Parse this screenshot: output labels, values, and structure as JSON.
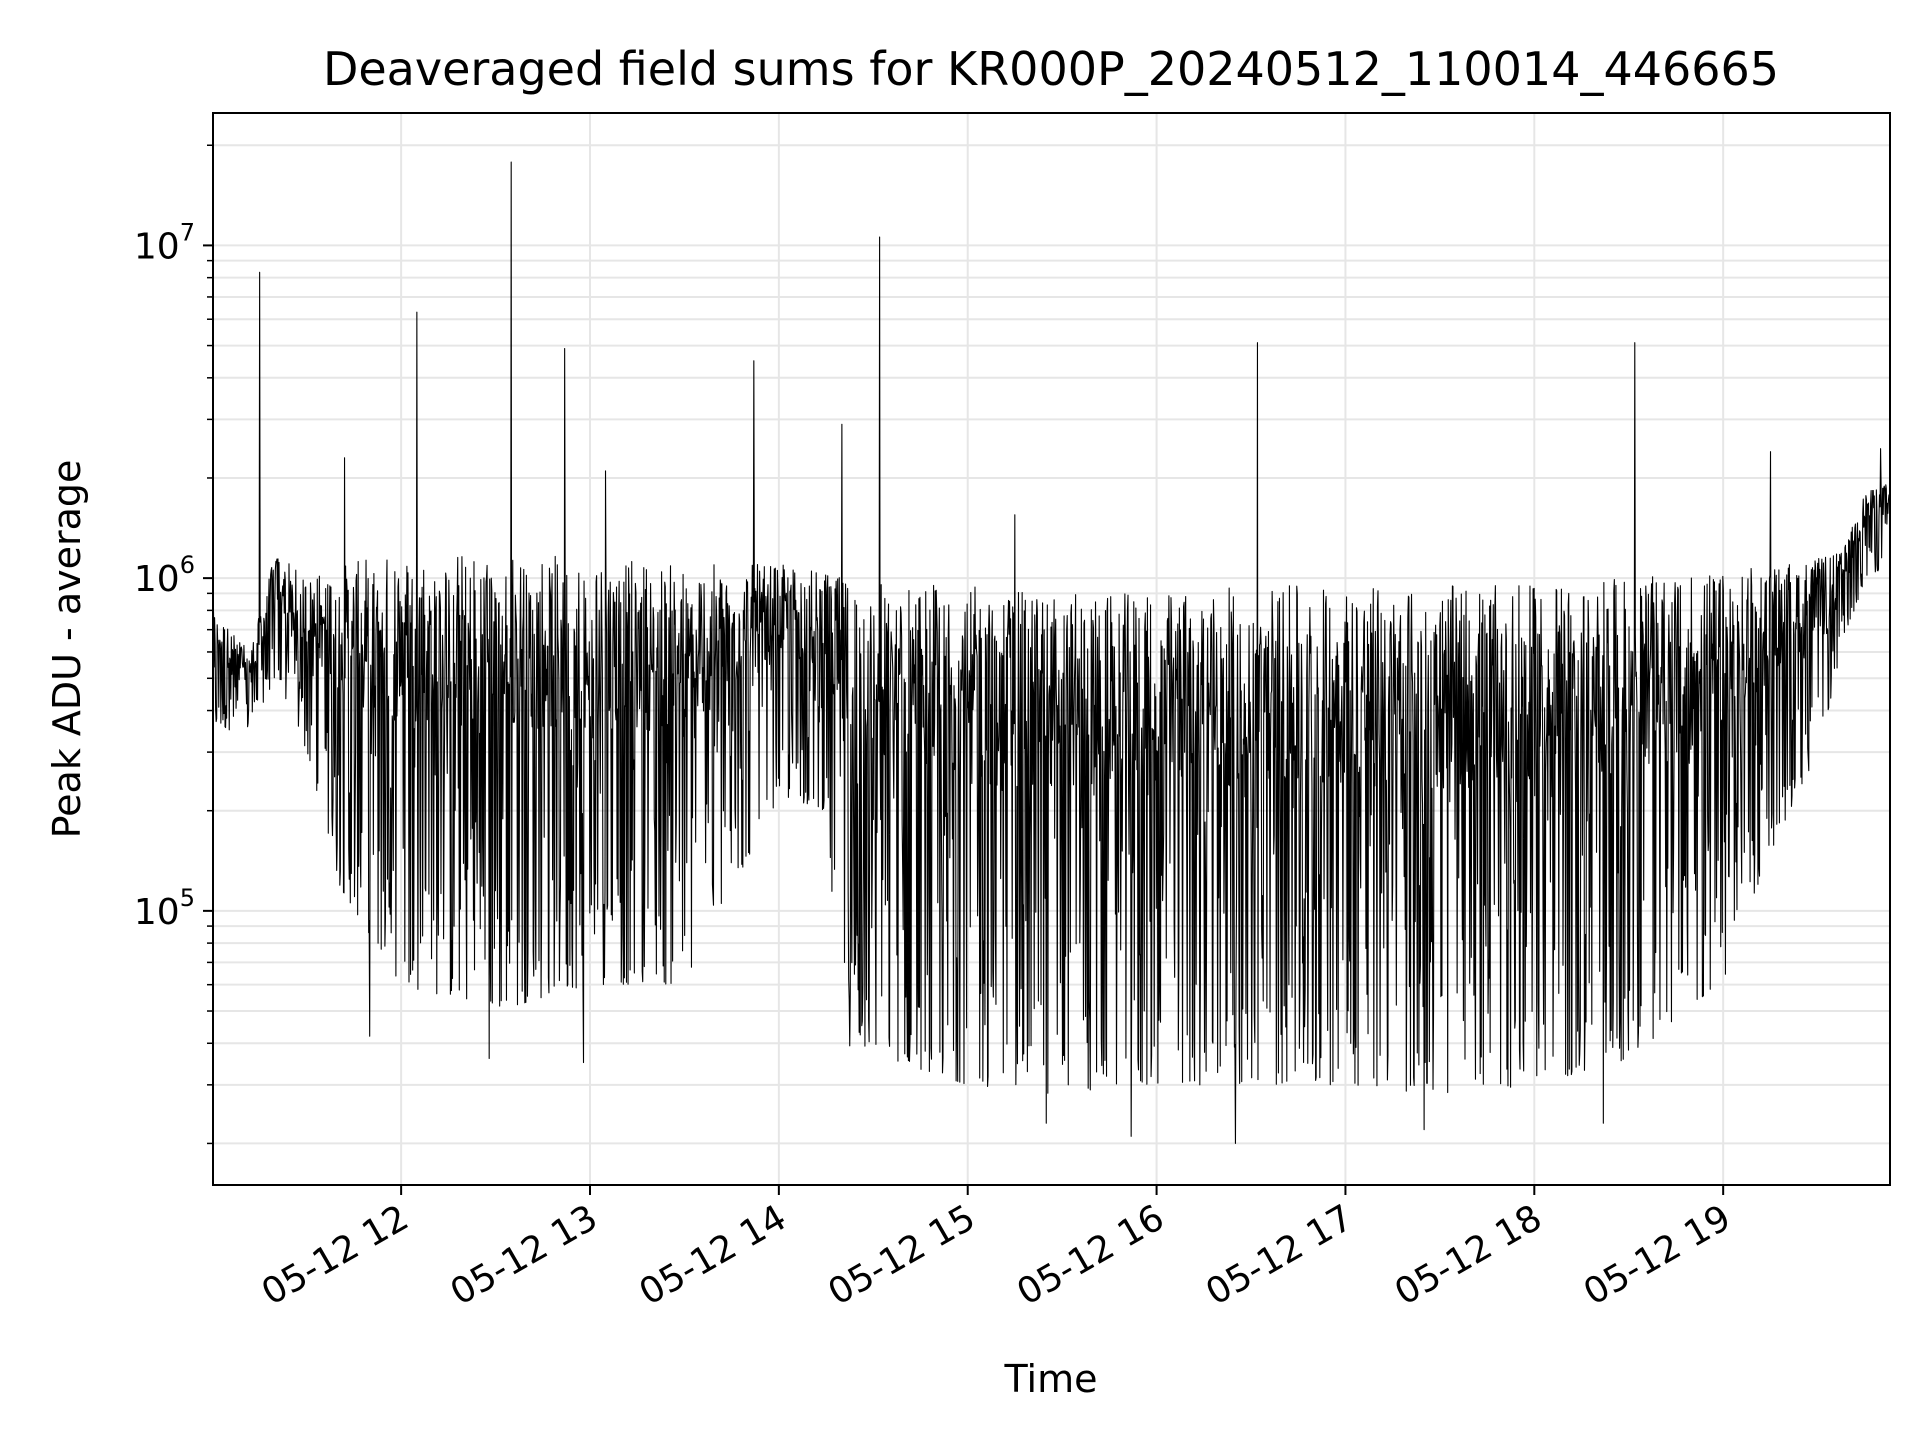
{
  "chart_data": {
    "type": "line",
    "title": "Deaveraged field sums for KR000P_20240512_110014_446665",
    "xlabel": "Time",
    "ylabel": "Peak ADU - average",
    "yscale": "log",
    "xlim": [
      "2024-05-12T11:00:14",
      "2024-05-12T19:53:00"
    ],
    "ylim": [
      15000,
      25000000
    ],
    "grid": true,
    "line_color": "#000000",
    "grid_color": "#e6e6e6",
    "x_ticks": [
      "05-12 12",
      "05-12 13",
      "05-12 14",
      "05-12 15",
      "05-12 16",
      "05-12 17",
      "05-12 18",
      "05-12 19"
    ],
    "x_tick_values": [
      "2024-05-12T12:00:00",
      "2024-05-12T13:00:00",
      "2024-05-12T14:00:00",
      "2024-05-12T15:00:00",
      "2024-05-12T16:00:00",
      "2024-05-12T17:00:00",
      "2024-05-12T18:00:00",
      "2024-05-12T19:00:00"
    ],
    "y_ticks": [
      {
        "value": 100000,
        "base": "10",
        "exp": "5"
      },
      {
        "value": 1000000,
        "base": "10",
        "exp": "6"
      },
      {
        "value": 10000000,
        "base": "10",
        "exp": "7"
      }
    ],
    "envelope": [
      {
        "t": "2024-05-12T11:00:14",
        "upper": 800000,
        "lower": 350000
      },
      {
        "t": "2024-05-12T11:12:00",
        "upper": 600000,
        "lower": 350000
      },
      {
        "t": "2024-05-12T11:20:00",
        "upper": 1200000,
        "lower": 500000
      },
      {
        "t": "2024-05-12T11:30:00",
        "upper": 1000000,
        "lower": 300000
      },
      {
        "t": "2024-05-12T11:40:00",
        "upper": 1100000,
        "lower": 120000
      },
      {
        "t": "2024-05-12T12:00:00",
        "upper": 1200000,
        "lower": 60000
      },
      {
        "t": "2024-05-12T12:30:00",
        "upper": 1200000,
        "lower": 50000
      },
      {
        "t": "2024-05-12T13:00:00",
        "upper": 1150000,
        "lower": 60000
      },
      {
        "t": "2024-05-12T13:30:00",
        "upper": 1100000,
        "lower": 60000
      },
      {
        "t": "2024-05-12T14:00:00",
        "upper": 1100000,
        "lower": 220000
      },
      {
        "t": "2024-05-12T14:15:00",
        "upper": 1050000,
        "lower": 200000
      },
      {
        "t": "2024-05-12T14:20:00",
        "upper": 1000000,
        "lower": 40000
      },
      {
        "t": "2024-05-12T15:00:00",
        "upper": 950000,
        "lower": 30000
      },
      {
        "t": "2024-05-12T15:30:00",
        "upper": 900000,
        "lower": 28000
      },
      {
        "t": "2024-05-12T16:00:00",
        "upper": 900000,
        "lower": 30000
      },
      {
        "t": "2024-05-12T16:30:00",
        "upper": 950000,
        "lower": 30000
      },
      {
        "t": "2024-05-12T17:00:00",
        "upper": 950000,
        "lower": 30000
      },
      {
        "t": "2024-05-12T17:30:00",
        "upper": 950000,
        "lower": 28000
      },
      {
        "t": "2024-05-12T18:00:00",
        "upper": 950000,
        "lower": 30000
      },
      {
        "t": "2024-05-12T18:30:00",
        "upper": 1000000,
        "lower": 35000
      },
      {
        "t": "2024-05-12T19:00:00",
        "upper": 1050000,
        "lower": 60000
      },
      {
        "t": "2024-05-12T19:15:00",
        "upper": 1100000,
        "lower": 150000
      },
      {
        "t": "2024-05-12T19:30:00",
        "upper": 1150000,
        "lower": 300000
      },
      {
        "t": "2024-05-12T19:38:00",
        "upper": 1200000,
        "lower": 600000
      },
      {
        "t": "2024-05-12T19:45:00",
        "upper": 1800000,
        "lower": 1000000
      },
      {
        "t": "2024-05-12T19:53:00",
        "upper": 2000000,
        "lower": 1100000
      }
    ],
    "spikes": [
      {
        "t": "2024-05-12T11:15:00",
        "y": 8300000
      },
      {
        "t": "2024-05-12T11:42:00",
        "y": 2300000
      },
      {
        "t": "2024-05-12T12:05:00",
        "y": 6300000
      },
      {
        "t": "2024-05-12T12:35:00",
        "y": 17800000
      },
      {
        "t": "2024-05-12T12:52:00",
        "y": 4900000
      },
      {
        "t": "2024-05-12T13:05:00",
        "y": 2100000
      },
      {
        "t": "2024-05-12T13:52:00",
        "y": 4500000
      },
      {
        "t": "2024-05-12T14:20:00",
        "y": 2900000
      },
      {
        "t": "2024-05-12T14:32:00",
        "y": 10600000
      },
      {
        "t": "2024-05-12T15:15:00",
        "y": 1550000
      },
      {
        "t": "2024-05-12T16:32:00",
        "y": 5100000
      },
      {
        "t": "2024-05-12T18:32:00",
        "y": 5100000
      },
      {
        "t": "2024-05-12T19:15:00",
        "y": 2400000
      },
      {
        "t": "2024-05-12T19:50:00",
        "y": 2450000
      }
    ],
    "dips": [
      {
        "t": "2024-05-12T11:50:00",
        "y": 42000
      },
      {
        "t": "2024-05-12T12:28:00",
        "y": 36000
      },
      {
        "t": "2024-05-12T12:58:00",
        "y": 35000
      },
      {
        "t": "2024-05-12T15:25:00",
        "y": 23000
      },
      {
        "t": "2024-05-12T15:52:00",
        "y": 21000
      },
      {
        "t": "2024-05-12T16:25:00",
        "y": 20000
      },
      {
        "t": "2024-05-12T17:25:00",
        "y": 22000
      },
      {
        "t": "2024-05-12T18:22:00",
        "y": 23000
      }
    ]
  }
}
